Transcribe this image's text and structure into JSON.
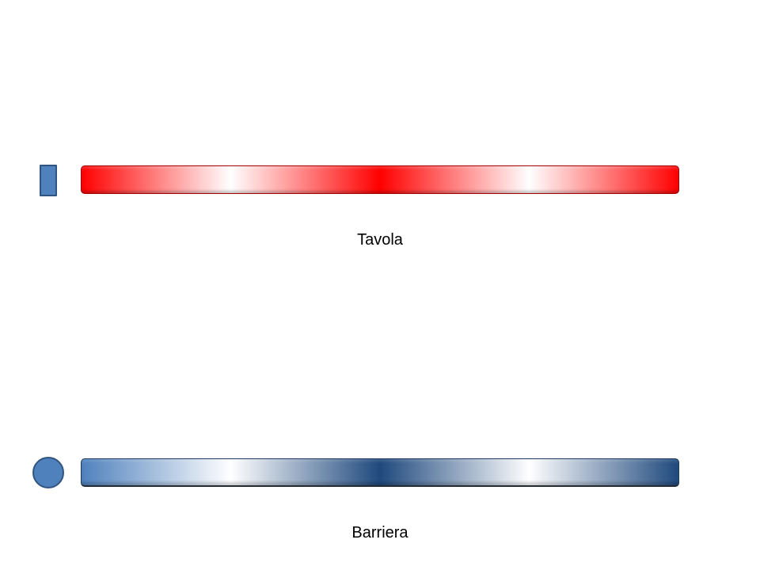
{
  "colors": {
    "shape_fill": "#4f81bd",
    "red_peak": "#ff0000",
    "blue_peak": "#1f497d",
    "blue_light": "#4f81bd",
    "white": "#ffffff"
  },
  "rows": [
    {
      "marker_icon": "rectangle-marker-icon",
      "bar_gradient": "red-white-red",
      "label": "Tavola"
    },
    {
      "marker_icon": "circle-marker-icon",
      "bar_gradient": "blue-white-blue",
      "label": "Barriera"
    }
  ]
}
